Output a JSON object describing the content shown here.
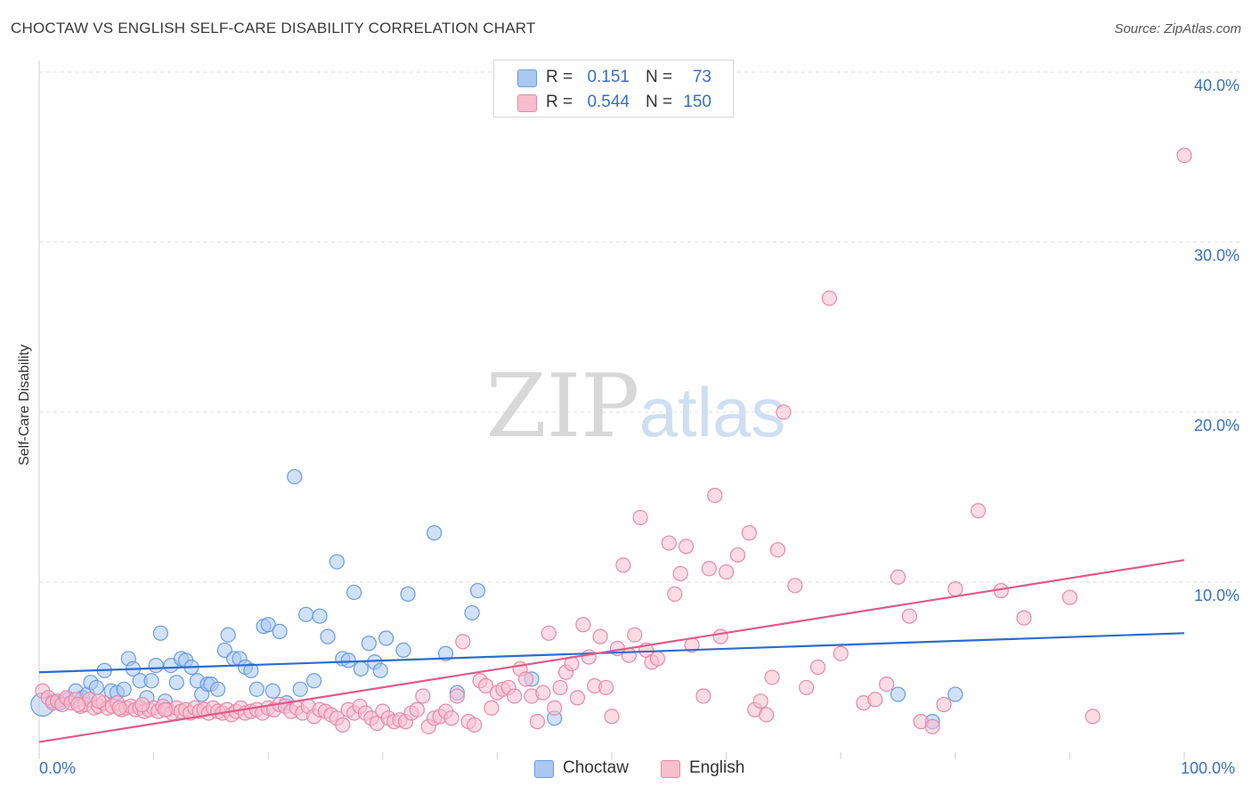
{
  "title": "CHOCTAW VS ENGLISH SELF-CARE DISABILITY CORRELATION CHART",
  "source": "Source: ZipAtlas.com",
  "watermark": {
    "zip": "ZIP",
    "atlas": "atlas"
  },
  "legend_top": {
    "r_label": "R =",
    "n_label": "N =",
    "rows": [
      {
        "series": "Choctaw",
        "r": "0.151",
        "n": "73",
        "color": "#a9c8f2",
        "border": "#6a9be0"
      },
      {
        "series": "English",
        "r": "0.544",
        "n": "150",
        "color": "#f9bdd0",
        "border": "#e48aa9"
      }
    ]
  },
  "legend_bottom": [
    {
      "label": "Choctaw",
      "color": "#a9c8f2",
      "border": "#6a9be0"
    },
    {
      "label": "English",
      "color": "#f9bdd0",
      "border": "#e48aa9"
    }
  ],
  "chart_data": {
    "type": "scatter",
    "xlabel": "",
    "ylabel": "Self-Care Disability",
    "xlim": [
      0,
      100
    ],
    "ylim": [
      0,
      42
    ],
    "y_ticks": [
      "10.0%",
      "20.0%",
      "30.0%",
      "40.0%"
    ],
    "x_tick_labels": [
      "0.0%",
      "100.0%"
    ],
    "grid": true,
    "legend_position": "top-center",
    "series": [
      {
        "name": "Choctaw",
        "color": "#6a9be0",
        "fill": "#a9c8f2",
        "trend": {
          "x": [
            0,
            100
          ],
          "y": [
            4.7,
            7.0
          ],
          "color": "#2b6ccf"
        },
        "points": [
          [
            0.3,
            2.8
          ],
          [
            1.2,
            3.0
          ],
          [
            1.8,
            2.9
          ],
          [
            2.5,
            3.1
          ],
          [
            3.2,
            3.6
          ],
          [
            3.8,
            3.2
          ],
          [
            4.2,
            3.4
          ],
          [
            4.5,
            4.1
          ],
          [
            5.0,
            3.8
          ],
          [
            5.7,
            4.8
          ],
          [
            6.3,
            3.6
          ],
          [
            6.8,
            3.5
          ],
          [
            7.4,
            3.7
          ],
          [
            7.8,
            5.5
          ],
          [
            8.2,
            4.9
          ],
          [
            8.8,
            4.2
          ],
          [
            9.4,
            3.2
          ],
          [
            9.8,
            4.2
          ],
          [
            10.2,
            5.1
          ],
          [
            10.6,
            7.0
          ],
          [
            11.0,
            3.0
          ],
          [
            11.5,
            5.1
          ],
          [
            12.0,
            4.1
          ],
          [
            12.4,
            5.5
          ],
          [
            12.8,
            5.4
          ],
          [
            13.3,
            5.0
          ],
          [
            13.8,
            4.2
          ],
          [
            14.2,
            3.4
          ],
          [
            14.7,
            4.0
          ],
          [
            15.0,
            4.0
          ],
          [
            15.6,
            3.7
          ],
          [
            16.2,
            6.0
          ],
          [
            16.5,
            6.9
          ],
          [
            17.0,
            5.5
          ],
          [
            17.5,
            5.5
          ],
          [
            18.0,
            5.0
          ],
          [
            18.5,
            4.8
          ],
          [
            19.0,
            3.7
          ],
          [
            19.6,
            7.4
          ],
          [
            20.0,
            7.5
          ],
          [
            20.4,
            3.6
          ],
          [
            21.0,
            7.1
          ],
          [
            21.6,
            2.9
          ],
          [
            22.3,
            16.2
          ],
          [
            22.8,
            3.7
          ],
          [
            23.3,
            8.1
          ],
          [
            24.0,
            4.2
          ],
          [
            24.5,
            8.0
          ],
          [
            25.2,
            6.8
          ],
          [
            26.0,
            11.2
          ],
          [
            26.5,
            5.5
          ],
          [
            27.0,
            5.4
          ],
          [
            27.5,
            9.4
          ],
          [
            28.1,
            4.9
          ],
          [
            28.8,
            6.4
          ],
          [
            29.3,
            5.3
          ],
          [
            29.8,
            4.8
          ],
          [
            30.3,
            6.7
          ],
          [
            31.8,
            6.0
          ],
          [
            32.2,
            9.3
          ],
          [
            34.5,
            12.9
          ],
          [
            35.5,
            5.8
          ],
          [
            36.5,
            3.5
          ],
          [
            37.8,
            8.2
          ],
          [
            38.3,
            9.5
          ],
          [
            43.0,
            4.3
          ],
          [
            45.0,
            2.0
          ],
          [
            75.0,
            3.4
          ],
          [
            78.0,
            1.8
          ],
          [
            80.0,
            3.4
          ]
        ]
      },
      {
        "name": "English",
        "color": "#e48aa9",
        "fill": "#f9bdd0",
        "trend": {
          "x": [
            0,
            100
          ],
          "y": [
            0.6,
            11.3
          ],
          "color": "#e05a8a"
        },
        "points": [
          [
            0.3,
            3.6
          ],
          [
            0.8,
            3.2
          ],
          [
            1.2,
            2.9
          ],
          [
            1.6,
            3.0
          ],
          [
            2.0,
            2.8
          ],
          [
            2.4,
            3.2
          ],
          [
            2.8,
            2.9
          ],
          [
            3.2,
            3.1
          ],
          [
            3.6,
            2.7
          ],
          [
            4.0,
            2.8
          ],
          [
            4.4,
            3.1
          ],
          [
            4.8,
            2.6
          ],
          [
            5.2,
            2.7
          ],
          [
            5.6,
            2.9
          ],
          [
            6.0,
            2.6
          ],
          [
            6.4,
            2.7
          ],
          [
            6.8,
            2.9
          ],
          [
            7.2,
            2.5
          ],
          [
            7.6,
            2.6
          ],
          [
            8.0,
            2.7
          ],
          [
            8.4,
            2.5
          ],
          [
            8.8,
            2.6
          ],
          [
            9.2,
            2.4
          ],
          [
            9.6,
            2.5
          ],
          [
            10.0,
            2.6
          ],
          [
            10.4,
            2.4
          ],
          [
            10.8,
            2.7
          ],
          [
            11.2,
            2.5
          ],
          [
            11.6,
            2.3
          ],
          [
            12.0,
            2.6
          ],
          [
            12.4,
            2.4
          ],
          [
            12.8,
            2.5
          ],
          [
            13.2,
            2.3
          ],
          [
            13.6,
            2.6
          ],
          [
            14.0,
            2.4
          ],
          [
            14.4,
            2.5
          ],
          [
            14.8,
            2.3
          ],
          [
            15.2,
            2.6
          ],
          [
            15.6,
            2.4
          ],
          [
            16.0,
            2.3
          ],
          [
            16.4,
            2.5
          ],
          [
            16.8,
            2.2
          ],
          [
            17.2,
            2.4
          ],
          [
            17.6,
            2.6
          ],
          [
            18.0,
            2.3
          ],
          [
            18.5,
            2.4
          ],
          [
            19.0,
            2.5
          ],
          [
            19.5,
            2.3
          ],
          [
            20.0,
            2.6
          ],
          [
            20.5,
            2.5
          ],
          [
            21.0,
            2.8
          ],
          [
            21.5,
            2.7
          ],
          [
            22.0,
            2.4
          ],
          [
            22.5,
            2.6
          ],
          [
            23.0,
            2.3
          ],
          [
            23.5,
            2.7
          ],
          [
            24.0,
            2.1
          ],
          [
            24.5,
            2.5
          ],
          [
            25.0,
            2.4
          ],
          [
            25.5,
            2.2
          ],
          [
            26.0,
            2.0
          ],
          [
            26.5,
            1.6
          ],
          [
            27.0,
            2.5
          ],
          [
            27.5,
            2.3
          ],
          [
            28.0,
            2.7
          ],
          [
            28.5,
            2.3
          ],
          [
            29.0,
            2.0
          ],
          [
            29.5,
            1.7
          ],
          [
            30.0,
            2.4
          ],
          [
            30.5,
            2.0
          ],
          [
            31.0,
            1.8
          ],
          [
            31.5,
            1.9
          ],
          [
            32.0,
            1.8
          ],
          [
            32.5,
            2.3
          ],
          [
            33.0,
            2.5
          ],
          [
            33.5,
            3.3
          ],
          [
            34.0,
            1.5
          ],
          [
            34.5,
            2.0
          ],
          [
            35.0,
            2.1
          ],
          [
            35.5,
            2.4
          ],
          [
            36.0,
            2.0
          ],
          [
            36.5,
            3.3
          ],
          [
            37.0,
            6.5
          ],
          [
            37.5,
            1.8
          ],
          [
            38.0,
            1.6
          ],
          [
            38.5,
            4.2
          ],
          [
            39.0,
            3.9
          ],
          [
            39.5,
            2.6
          ],
          [
            40.0,
            3.5
          ],
          [
            40.5,
            3.7
          ],
          [
            41.0,
            3.8
          ],
          [
            41.5,
            3.3
          ],
          [
            42.0,
            4.9
          ],
          [
            42.5,
            4.3
          ],
          [
            43.0,
            3.3
          ],
          [
            43.5,
            1.8
          ],
          [
            44.0,
            3.5
          ],
          [
            44.5,
            7.0
          ],
          [
            45.0,
            2.6
          ],
          [
            45.5,
            3.8
          ],
          [
            46.0,
            4.7
          ],
          [
            46.5,
            5.2
          ],
          [
            47.0,
            3.2
          ],
          [
            47.5,
            7.5
          ],
          [
            48.0,
            5.6
          ],
          [
            48.5,
            3.9
          ],
          [
            49.0,
            6.8
          ],
          [
            49.5,
            3.8
          ],
          [
            50.0,
            2.1
          ],
          [
            50.5,
            6.1
          ],
          [
            51.0,
            11.0
          ],
          [
            51.5,
            5.7
          ],
          [
            52.0,
            6.9
          ],
          [
            52.5,
            13.8
          ],
          [
            53.0,
            6.0
          ],
          [
            53.5,
            5.3
          ],
          [
            54.0,
            5.5
          ],
          [
            55.0,
            12.3
          ],
          [
            55.5,
            9.3
          ],
          [
            56.0,
            10.5
          ],
          [
            56.5,
            12.1
          ],
          [
            57.0,
            6.3
          ],
          [
            58.0,
            3.3
          ],
          [
            58.5,
            10.8
          ],
          [
            59.0,
            15.1
          ],
          [
            59.5,
            6.8
          ],
          [
            60.0,
            10.6
          ],
          [
            61.0,
            11.6
          ],
          [
            62.0,
            12.9
          ],
          [
            62.5,
            2.5
          ],
          [
            63.0,
            3.0
          ],
          [
            63.5,
            2.2
          ],
          [
            64.0,
            4.4
          ],
          [
            64.5,
            11.9
          ],
          [
            65.0,
            20.0
          ],
          [
            66.0,
            9.8
          ],
          [
            67.0,
            3.8
          ],
          [
            68.0,
            5.0
          ],
          [
            69.0,
            26.7
          ],
          [
            70.0,
            5.8
          ],
          [
            72.0,
            2.9
          ],
          [
            73.0,
            3.1
          ],
          [
            74.0,
            4.0
          ],
          [
            75.0,
            10.3
          ],
          [
            76.0,
            8.0
          ],
          [
            77.0,
            1.8
          ],
          [
            78.0,
            1.5
          ],
          [
            79.0,
            2.8
          ],
          [
            80.0,
            9.6
          ],
          [
            82.0,
            14.2
          ],
          [
            84.0,
            9.5
          ],
          [
            86.0,
            7.9
          ],
          [
            90.0,
            9.1
          ],
          [
            92.0,
            2.1
          ],
          [
            100.0,
            35.1
          ],
          [
            3.4,
            2.8
          ],
          [
            5.2,
            3.0
          ],
          [
            7.0,
            2.6
          ],
          [
            9.0,
            2.8
          ],
          [
            11.0,
            2.5
          ]
        ]
      }
    ]
  }
}
